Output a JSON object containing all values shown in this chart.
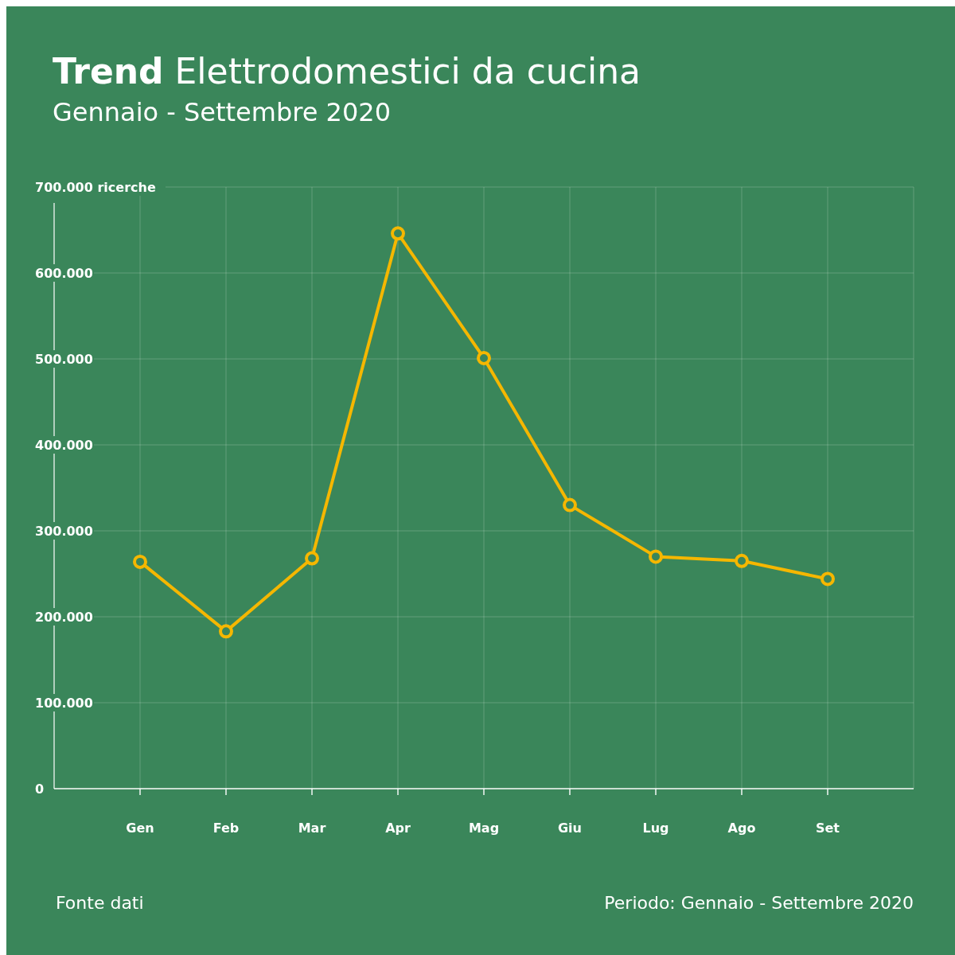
{
  "chart_data": {
    "type": "line",
    "title": "Trend Elettrodomestici da cucina",
    "subtitle": "Gennaio - Settembre 2020",
    "categories": [
      "Gen",
      "Feb",
      "Mar",
      "Apr",
      "Mag",
      "Giu",
      "Lug",
      "Ago",
      "Set"
    ],
    "series": [
      {
        "color": "#f5b700",
        "values": [
          264000,
          183000,
          268000,
          646000,
          501000,
          330000,
          270000,
          265000,
          244000
        ]
      }
    ],
    "ylim": [
      0,
      700000
    ],
    "yticks": [
      {
        "value": 0,
        "label": "0"
      },
      {
        "value": 100000,
        "label": "100.000"
      },
      {
        "value": 200000,
        "label": "200.000"
      },
      {
        "value": 300000,
        "label": "300.000"
      },
      {
        "value": 400000,
        "label": "400.000"
      },
      {
        "value": 500000,
        "label": "500.000"
      },
      {
        "value": 600000,
        "label": "600.000"
      },
      {
        "value": 700000,
        "label": "700.000 ricerche"
      }
    ],
    "grid": true,
    "marker": "circle",
    "line_style": "solid",
    "annotations": [
      "Fonte dati",
      "Periodo: Gennaio - Settembre 2020"
    ]
  }
}
